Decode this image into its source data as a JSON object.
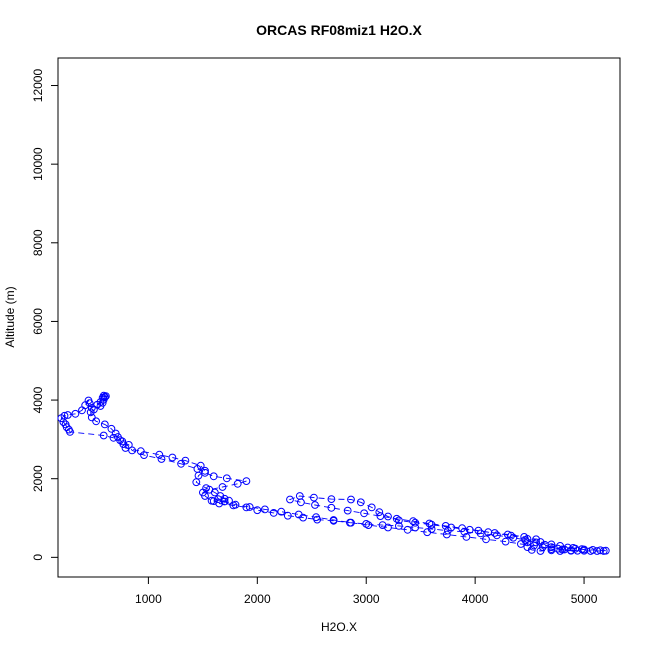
{
  "chart_data": {
    "type": "line",
    "title": "ORCAS RF08miz1 H2O.X",
    "xlabel": "H2O.X",
    "ylabel": "Altitude (m)",
    "xlim": [
      170,
      5330
    ],
    "ylim": [
      -500,
      12700
    ],
    "x_ticks": [
      1000,
      2000,
      3000,
      4000,
      5000
    ],
    "y_ticks": [
      0,
      2000,
      4000,
      6000,
      8000,
      10000,
      12000
    ],
    "grid": false,
    "legend": "none",
    "series": [
      {
        "color": "#0000ff",
        "marker": "open-circle",
        "line_style": "dashed",
        "points": [
          [
            600,
            4080
          ],
          [
            590,
            4110
          ],
          [
            610,
            4100
          ],
          [
            580,
            4060
          ],
          [
            560,
            3950
          ],
          [
            530,
            3880
          ],
          [
            480,
            3800
          ],
          [
            460,
            3920
          ],
          [
            450,
            3990
          ],
          [
            420,
            3870
          ],
          [
            390,
            3740
          ],
          [
            330,
            3650
          ],
          [
            260,
            3620
          ],
          [
            230,
            3600
          ],
          [
            200,
            3540
          ],
          [
            220,
            3440
          ],
          [
            240,
            3380
          ],
          [
            250,
            3310
          ],
          [
            270,
            3250
          ],
          [
            280,
            3190
          ],
          [
            590,
            3100
          ],
          [
            680,
            3040
          ],
          [
            740,
            2980
          ],
          [
            770,
            2880
          ],
          [
            790,
            2780
          ],
          [
            930,
            2700
          ],
          [
            1100,
            2610
          ],
          [
            1220,
            2540
          ],
          [
            1340,
            2460
          ],
          [
            1480,
            2330
          ],
          [
            1520,
            2200
          ],
          [
            1460,
            2080
          ],
          [
            1440,
            1910
          ],
          [
            1530,
            1760
          ],
          [
            1610,
            1650
          ],
          [
            1660,
            1560
          ],
          [
            1700,
            1490
          ],
          [
            1740,
            1440
          ],
          [
            1600,
            1430
          ],
          [
            1650,
            1370
          ],
          [
            1780,
            1320
          ],
          [
            1900,
            1270
          ],
          [
            2000,
            1200
          ],
          [
            2150,
            1130
          ],
          [
            2280,
            1060
          ],
          [
            2420,
            1010
          ],
          [
            2550,
            960
          ],
          [
            2700,
            930
          ],
          [
            2850,
            880
          ],
          [
            3000,
            850
          ],
          [
            3150,
            820
          ],
          [
            3300,
            800
          ],
          [
            3450,
            760
          ],
          [
            3600,
            720
          ],
          [
            3750,
            680
          ],
          [
            3900,
            650
          ],
          [
            4050,
            610
          ],
          [
            4200,
            560
          ],
          [
            4350,
            500
          ],
          [
            4460,
            440
          ],
          [
            4560,
            380
          ],
          [
            4640,
            320
          ],
          [
            4700,
            260
          ],
          [
            4760,
            220
          ],
          [
            4820,
            200
          ],
          [
            4880,
            180
          ],
          [
            4940,
            170
          ],
          [
            5000,
            170
          ],
          [
            5060,
            160
          ],
          [
            5120,
            160
          ],
          [
            5180,
            160
          ],
          [
            5200,
            170
          ],
          [
            5150,
            180
          ],
          [
            5080,
            190
          ],
          [
            5000,
            200
          ],
          [
            4920,
            220
          ],
          [
            4850,
            250
          ],
          [
            4780,
            290
          ],
          [
            4700,
            330
          ],
          [
            4600,
            390
          ],
          [
            4480,
            470
          ],
          [
            4330,
            550
          ],
          [
            4180,
            620
          ],
          [
            4030,
            680
          ],
          [
            3880,
            740
          ],
          [
            3730,
            800
          ],
          [
            3580,
            860
          ],
          [
            3430,
            920
          ],
          [
            3280,
            980
          ],
          [
            3130,
            1050
          ],
          [
            2980,
            1120
          ],
          [
            2830,
            1190
          ],
          [
            2680,
            1260
          ],
          [
            2530,
            1330
          ],
          [
            2400,
            1400
          ],
          [
            2300,
            1470
          ],
          [
            2390,
            1560
          ],
          [
            2520,
            1520
          ],
          [
            2680,
            1480
          ],
          [
            2860,
            1470
          ],
          [
            2950,
            1400
          ],
          [
            3050,
            1270
          ],
          [
            3120,
            1150
          ],
          [
            3200,
            1040
          ],
          [
            3300,
            940
          ],
          [
            3450,
            880
          ],
          [
            3600,
            830
          ],
          [
            3780,
            760
          ],
          [
            3950,
            700
          ],
          [
            4120,
            640
          ],
          [
            4300,
            580
          ],
          [
            4450,
            520
          ],
          [
            4560,
            460
          ],
          [
            4480,
            380
          ],
          [
            4480,
            260
          ],
          [
            4520,
            190
          ],
          [
            4600,
            160
          ],
          [
            4700,
            180
          ],
          [
            4800,
            200
          ],
          [
            4900,
            240
          ],
          [
            4980,
            210
          ],
          [
            4880,
            170
          ],
          [
            4780,
            160
          ],
          [
            4700,
            210
          ],
          [
            4620,
            260
          ],
          [
            4540,
            300
          ],
          [
            4420,
            340
          ],
          [
            4280,
            400
          ],
          [
            4100,
            460
          ],
          [
            3920,
            520
          ],
          [
            3740,
            580
          ],
          [
            3560,
            640
          ],
          [
            3380,
            700
          ],
          [
            3200,
            760
          ],
          [
            3020,
            820
          ],
          [
            2860,
            880
          ],
          [
            2700,
            950
          ],
          [
            2540,
            1020
          ],
          [
            2380,
            1090
          ],
          [
            2220,
            1160
          ],
          [
            2070,
            1220
          ],
          [
            1930,
            1280
          ],
          [
            1800,
            1340
          ],
          [
            1700,
            1420
          ],
          [
            1640,
            1480
          ],
          [
            1580,
            1440
          ],
          [
            1520,
            1560
          ],
          [
            1500,
            1650
          ],
          [
            1560,
            1720
          ],
          [
            1680,
            1790
          ],
          [
            1820,
            1870
          ],
          [
            1900,
            1940
          ],
          [
            1720,
            2010
          ],
          [
            1600,
            2060
          ],
          [
            1520,
            2150
          ],
          [
            1450,
            2250
          ],
          [
            1300,
            2380
          ],
          [
            1120,
            2500
          ],
          [
            960,
            2600
          ],
          [
            850,
            2720
          ],
          [
            820,
            2860
          ],
          [
            760,
            2950
          ],
          [
            720,
            3060
          ],
          [
            700,
            3150
          ],
          [
            660,
            3270
          ],
          [
            600,
            3380
          ],
          [
            520,
            3460
          ],
          [
            480,
            3560
          ],
          [
            470,
            3690
          ],
          [
            500,
            3760
          ],
          [
            560,
            3850
          ],
          [
            580,
            3930
          ],
          [
            590,
            4010
          ],
          [
            600,
            4070
          ]
        ]
      }
    ]
  }
}
